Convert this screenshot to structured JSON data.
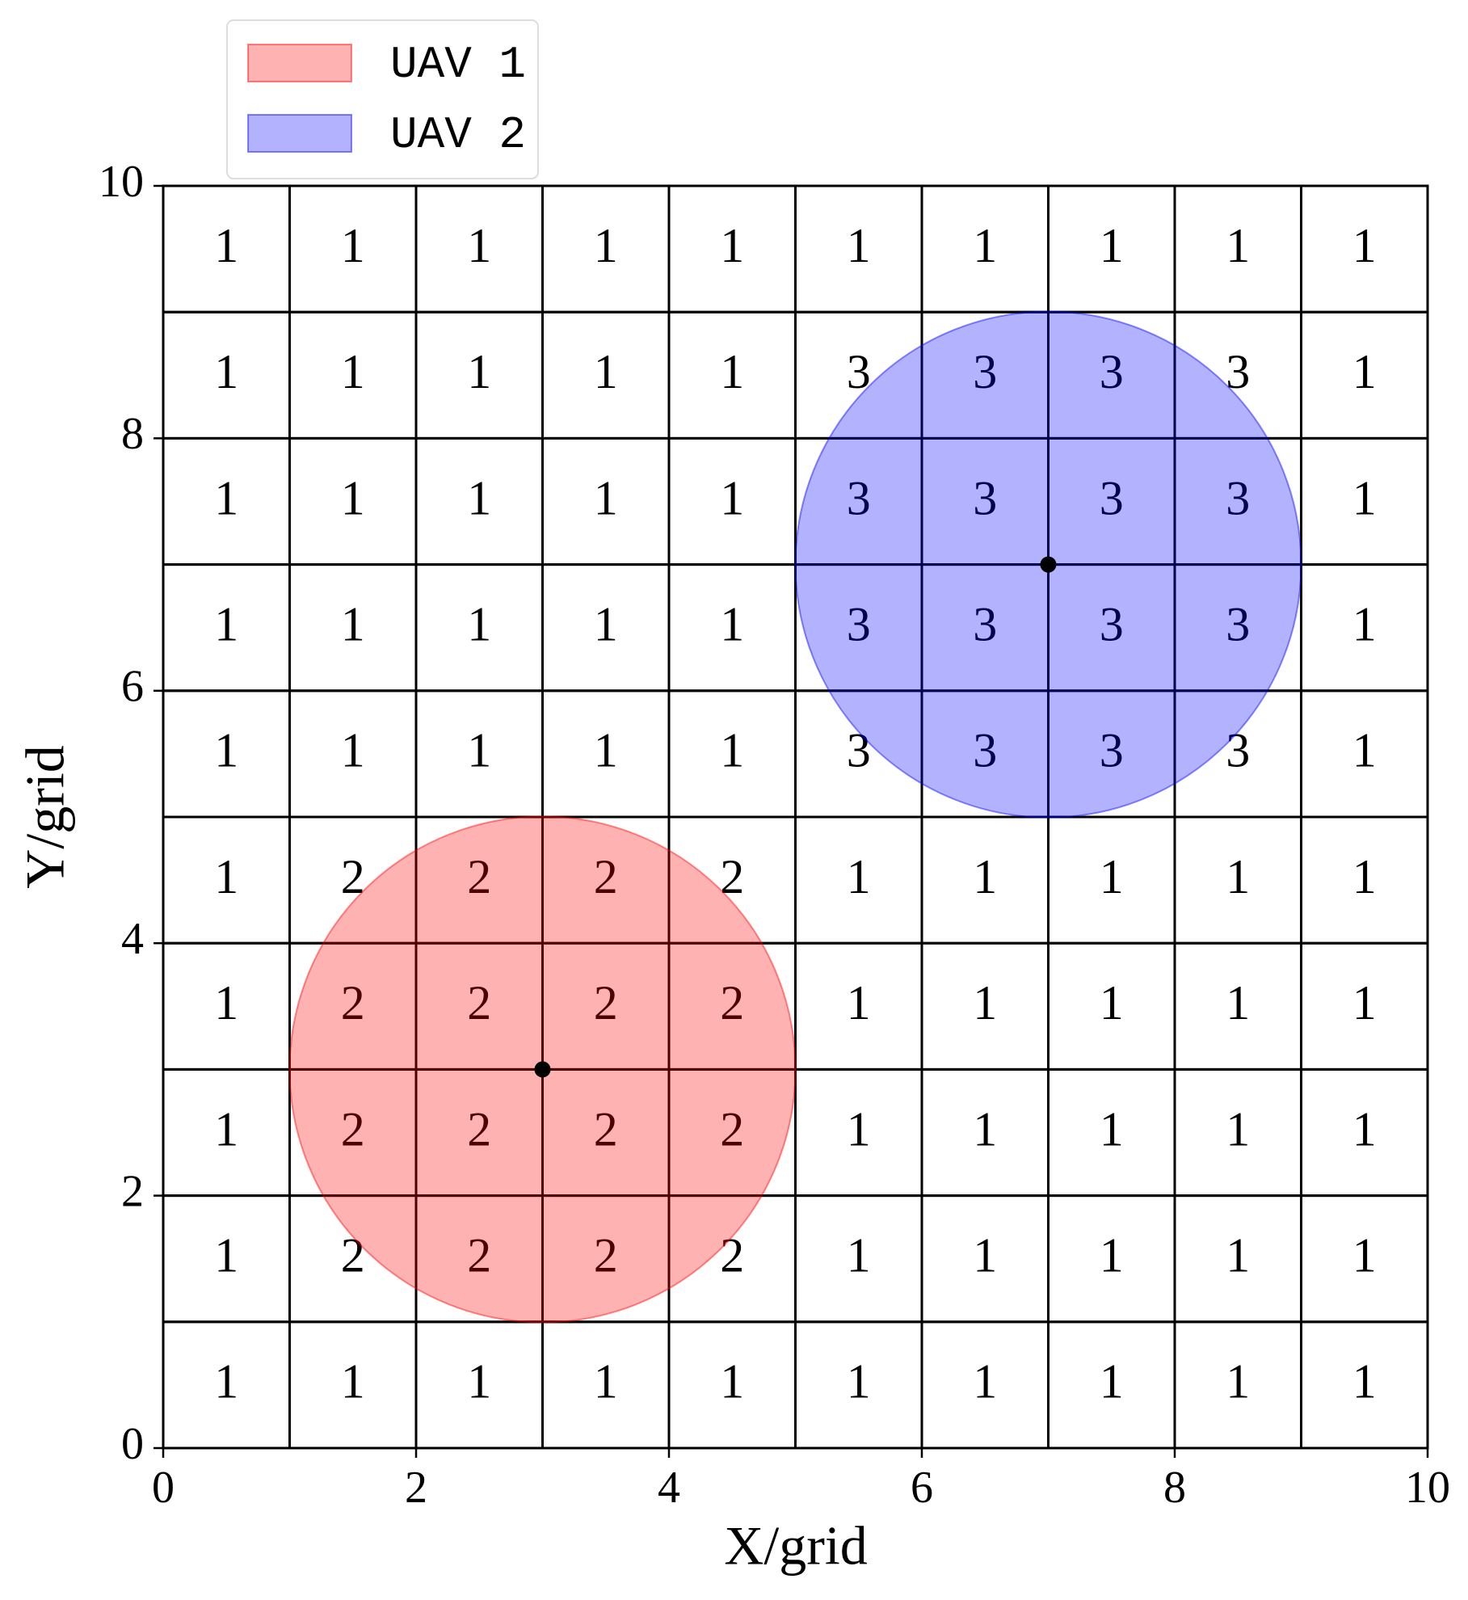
{
  "chart_data": {
    "type": "grid-coverage",
    "xlabel": "X/grid",
    "ylabel": "Y/grid",
    "xlim": [
      0,
      10
    ],
    "ylim": [
      0,
      10
    ],
    "xticks": [
      0,
      2,
      4,
      6,
      8,
      10
    ],
    "yticks": [
      0,
      2,
      4,
      6,
      8,
      10
    ],
    "cells": [
      [
        1,
        1,
        1,
        1,
        1,
        1,
        1,
        1,
        1,
        1
      ],
      [
        1,
        2,
        2,
        2,
        2,
        1,
        1,
        1,
        1,
        1
      ],
      [
        1,
        2,
        2,
        2,
        2,
        1,
        1,
        1,
        1,
        1
      ],
      [
        1,
        2,
        2,
        2,
        2,
        1,
        1,
        1,
        1,
        1
      ],
      [
        1,
        2,
        2,
        2,
        2,
        1,
        1,
        1,
        1,
        1
      ],
      [
        1,
        1,
        1,
        1,
        1,
        3,
        3,
        3,
        3,
        1
      ],
      [
        1,
        1,
        1,
        1,
        1,
        3,
        3,
        3,
        3,
        1
      ],
      [
        1,
        1,
        1,
        1,
        1,
        3,
        3,
        3,
        3,
        1
      ],
      [
        1,
        1,
        1,
        1,
        1,
        3,
        3,
        3,
        3,
        1
      ],
      [
        1,
        1,
        1,
        1,
        1,
        1,
        1,
        1,
        1,
        1
      ]
    ],
    "series": [
      {
        "name": "UAV 1",
        "color": "#ff0000",
        "alpha": 0.3,
        "center": [
          3,
          3
        ],
        "radius": 2
      },
      {
        "name": "UAV 2",
        "color": "#0000ff",
        "alpha": 0.3,
        "center": [
          7,
          7
        ],
        "radius": 2
      }
    ],
    "legend": "upper left"
  }
}
